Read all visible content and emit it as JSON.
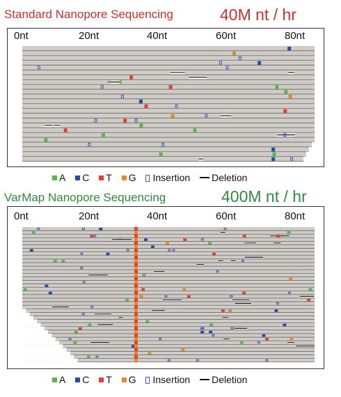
{
  "panel1": {
    "title": "Standard Nanopore Sequencing",
    "rate": "40M nt / hr",
    "ticks": [
      "0nt",
      "20nt",
      "40nt",
      "60nt",
      "80nt"
    ]
  },
  "panel2": {
    "title": "VarMap Nanopore Sequencing",
    "rate": "400M nt / hr",
    "ticks": [
      "0nt",
      "20nt",
      "40nt",
      "60nt",
      "80nt"
    ]
  },
  "legend": {
    "a": "A",
    "c": "C",
    "t": "T",
    "g": "G",
    "insertion": "Insertion",
    "deletion": "Deletion"
  },
  "colors": {
    "A": "#55b847",
    "C": "#1f4fa8",
    "T": "#ea3b2e",
    "G": "#e08a2c",
    "insertion": "#5550c0",
    "read": "#cfcbc6",
    "title1": "#c8302c",
    "title2": "#2e8b3e"
  }
}
